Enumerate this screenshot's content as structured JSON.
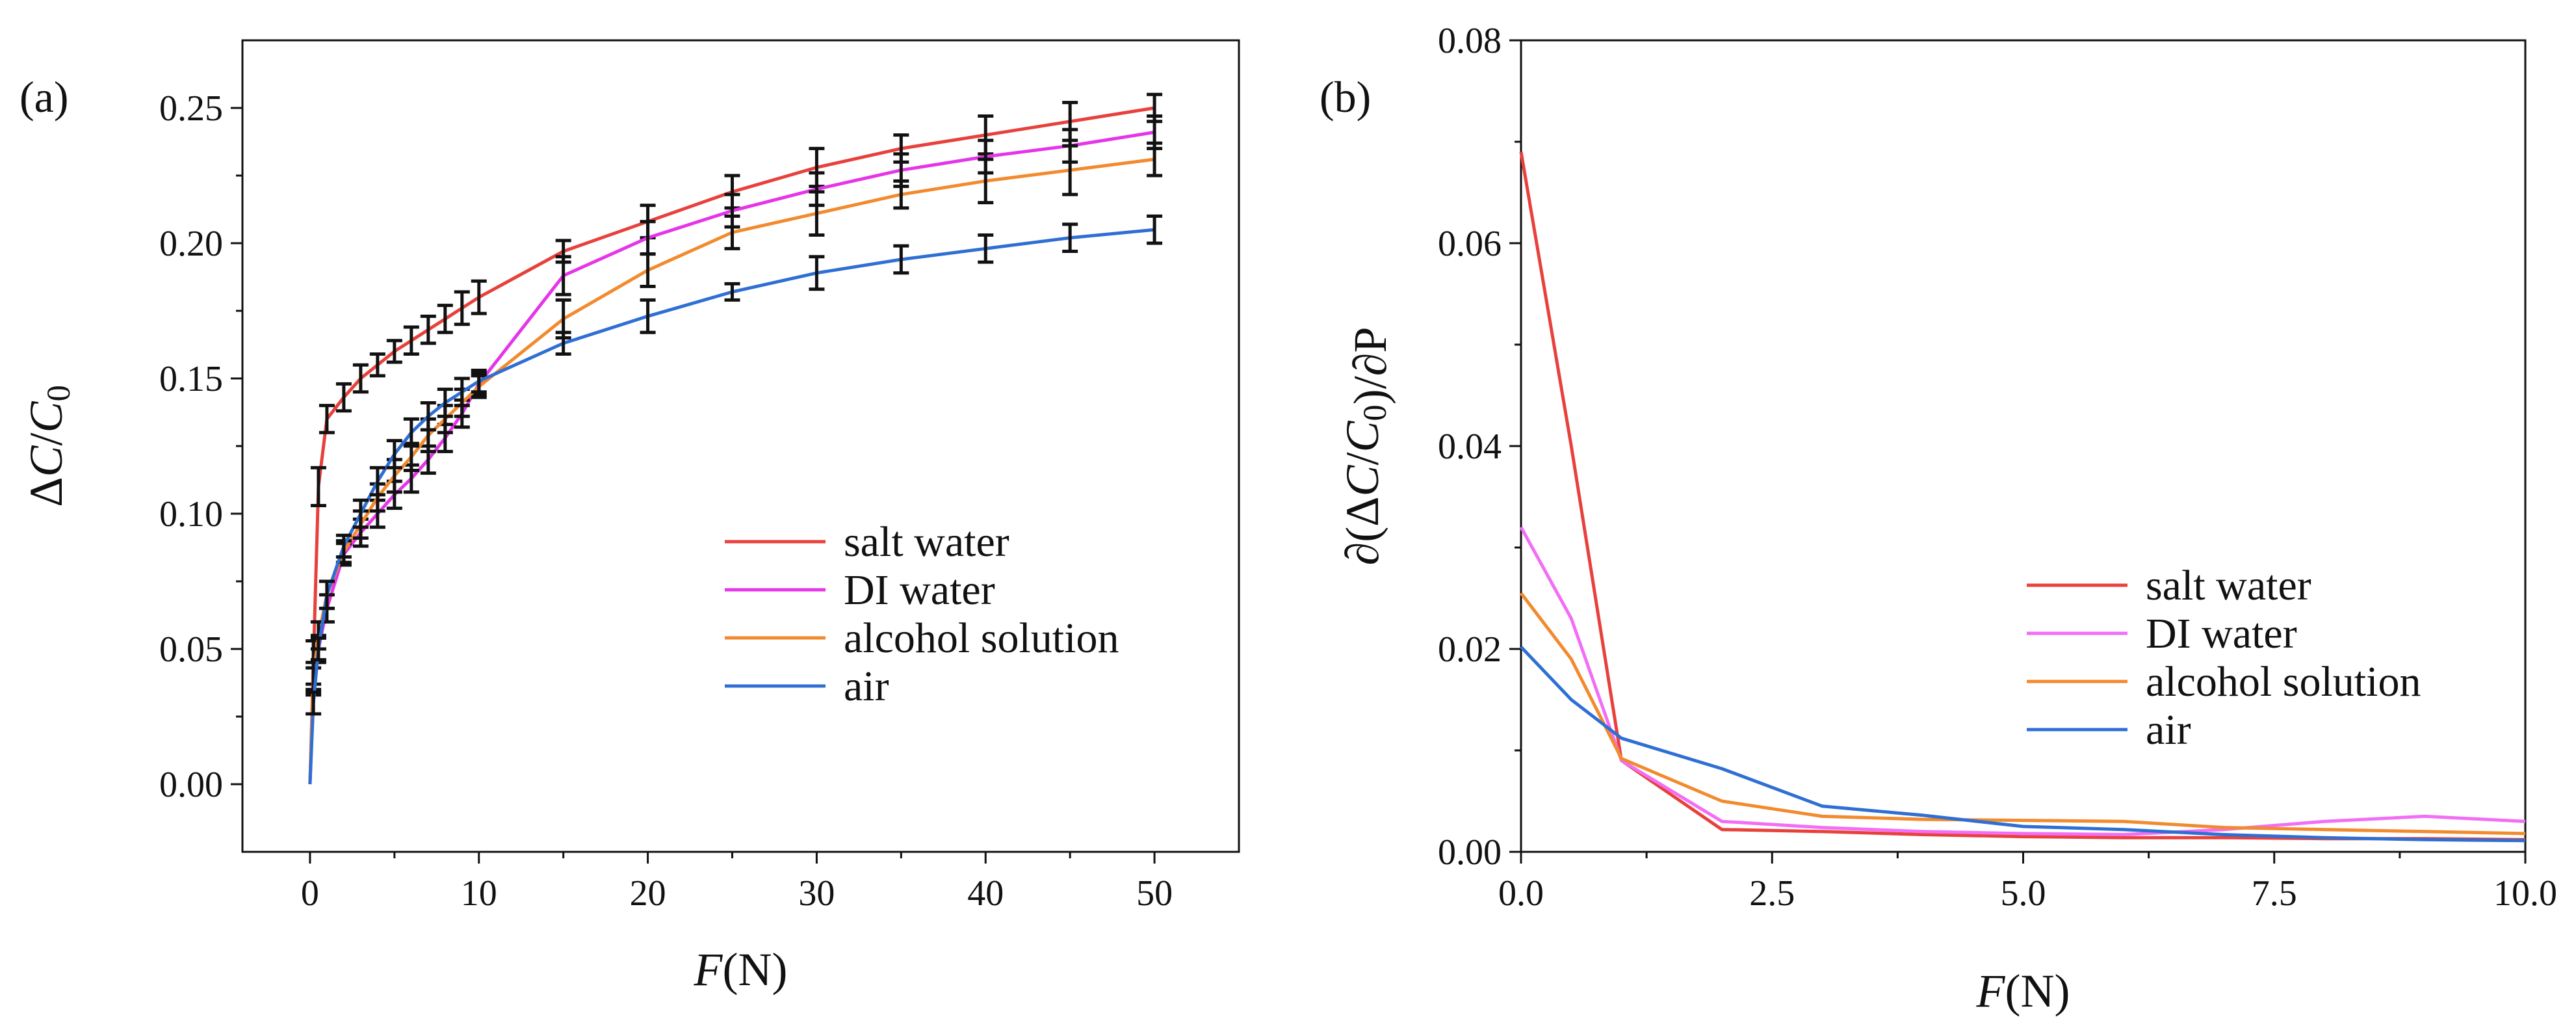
{
  "chart_data": [
    {
      "type": "line",
      "panel": "(a)",
      "xlabel": "F(N)",
      "ylabel": "ΔC/C0",
      "xlim": [
        -4,
        55
      ],
      "ylim": [
        -0.025,
        0.275
      ],
      "xticks": [
        0,
        10,
        20,
        30,
        40,
        50
      ],
      "xtick_labels": [
        "0",
        "10",
        "20",
        "30",
        "40",
        "50"
      ],
      "yticks": [
        0.0,
        0.05,
        0.1,
        0.15,
        0.2,
        0.25
      ],
      "ytick_labels": [
        "0.00",
        "0.05",
        "0.10",
        "0.15",
        "0.20",
        "0.25"
      ],
      "legend_position": "center-right",
      "error_bars": true,
      "series": [
        {
          "name": "salt water",
          "color": "#e8413c",
          "x": [
            0,
            0.2,
            0.5,
            1,
            2,
            3,
            4,
            5,
            6,
            7,
            8,
            9,
            10,
            15,
            20,
            25,
            30,
            35,
            40,
            45,
            50
          ],
          "y": [
            0.0,
            0.045,
            0.11,
            0.135,
            0.143,
            0.15,
            0.155,
            0.16,
            0.164,
            0.168,
            0.172,
            0.176,
            0.18,
            0.197,
            0.208,
            0.219,
            0.228,
            0.235,
            0.24,
            0.245,
            0.25
          ],
          "err": [
            0,
            0.008,
            0.007,
            0.005,
            0.005,
            0.005,
            0.004,
            0.004,
            0.005,
            0.005,
            0.005,
            0.006,
            0.006,
            0.004,
            0.006,
            0.006,
            0.007,
            0.005,
            0.007,
            0.007,
            0.005
          ]
        },
        {
          "name": "DI water",
          "color": "#e535e8",
          "x": [
            0,
            0.2,
            0.5,
            1,
            2,
            3,
            4,
            5,
            6,
            7,
            8,
            9,
            10,
            15,
            20,
            25,
            30,
            35,
            40,
            45,
            50
          ],
          "y": [
            0.0,
            0.038,
            0.05,
            0.065,
            0.085,
            0.093,
            0.1,
            0.107,
            0.113,
            0.12,
            0.128,
            0.137,
            0.148,
            0.188,
            0.202,
            0.212,
            0.22,
            0.227,
            0.232,
            0.236,
            0.241
          ],
          "err": [
            0,
            0.005,
            0.005,
            0.005,
            0.004,
            0.005,
            0.005,
            0.005,
            0.005,
            0.005,
            0.005,
            0.005,
            0.004,
            0.007,
            0.006,
            0.006,
            0.006,
            0.006,
            0.006,
            0.006,
            0.006
          ]
        },
        {
          "name": "alcohol solution",
          "color": "#f28a2e",
          "x": [
            0,
            0.2,
            0.5,
            1,
            2,
            3,
            4,
            5,
            6,
            7,
            8,
            9,
            10,
            15,
            20,
            25,
            30,
            35,
            40,
            45,
            50
          ],
          "y": [
            0.0,
            0.04,
            0.055,
            0.07,
            0.086,
            0.096,
            0.106,
            0.114,
            0.121,
            0.129,
            0.135,
            0.141,
            0.147,
            0.172,
            0.19,
            0.204,
            0.211,
            0.218,
            0.223,
            0.227,
            0.231
          ],
          "err": [
            0,
            0.005,
            0.005,
            0.005,
            0.004,
            0.005,
            0.005,
            0.006,
            0.005,
            0.006,
            0.005,
            0.005,
            0.004,
            0.007,
            0.006,
            0.006,
            0.008,
            0.005,
            0.008,
            0.009,
            0.006
          ]
        },
        {
          "name": "air",
          "color": "#2f6fd4",
          "x": [
            0,
            0.2,
            0.5,
            1,
            2,
            3,
            4,
            5,
            6,
            7,
            8,
            9,
            10,
            15,
            20,
            25,
            30,
            35,
            40,
            45,
            50
          ],
          "y": [
            0.0,
            0.03,
            0.05,
            0.07,
            0.088,
            0.1,
            0.112,
            0.122,
            0.13,
            0.136,
            0.141,
            0.145,
            0.149,
            0.163,
            0.173,
            0.182,
            0.189,
            0.194,
            0.198,
            0.202,
            0.205
          ],
          "err": [
            0,
            0.004,
            0.004,
            0.005,
            0.004,
            0.005,
            0.005,
            0.005,
            0.005,
            0.005,
            0.005,
            0.005,
            0.004,
            0.004,
            0.006,
            0.003,
            0.006,
            0.005,
            0.005,
            0.005,
            0.005
          ]
        }
      ]
    },
    {
      "type": "line",
      "panel": "(b)",
      "xlabel": "F(N)",
      "ylabel": "∂(ΔC/C0)/∂P",
      "xlim": [
        0,
        10
      ],
      "ylim": [
        0,
        0.08
      ],
      "xticks": [
        0,
        2.5,
        5,
        7.5,
        10
      ],
      "xtick_labels": [
        "0.0",
        "2.5",
        "5.0",
        "7.5",
        "10.0"
      ],
      "yticks": [
        0,
        0.02,
        0.04,
        0.06,
        0.08
      ],
      "ytick_labels": [
        "0.00",
        "0.02",
        "0.04",
        "0.06",
        "0.08"
      ],
      "legend_position": "center-right",
      "series": [
        {
          "name": "salt water",
          "color": "#e8413c",
          "x": [
            0,
            0.5,
            1,
            2,
            3,
            4,
            5,
            6,
            7,
            8,
            9,
            10
          ],
          "y": [
            0.069,
            0.04,
            0.009,
            0.0022,
            0.002,
            0.0017,
            0.0015,
            0.0014,
            0.0014,
            0.0013,
            0.0013,
            0.0012
          ]
        },
        {
          "name": "DI water",
          "color": "#f26ef5",
          "x": [
            0,
            0.5,
            1,
            2,
            3,
            4,
            5,
            6,
            7,
            8,
            9,
            10
          ],
          "y": [
            0.032,
            0.023,
            0.009,
            0.003,
            0.0024,
            0.002,
            0.0018,
            0.0017,
            0.0022,
            0.003,
            0.0035,
            0.003
          ]
        },
        {
          "name": "alcohol solution",
          "color": "#f28a2e",
          "x": [
            0,
            0.5,
            1,
            2,
            3,
            4,
            5,
            6,
            7,
            8,
            9,
            10
          ],
          "y": [
            0.0255,
            0.019,
            0.0092,
            0.005,
            0.0035,
            0.0032,
            0.0031,
            0.003,
            0.0024,
            0.0022,
            0.002,
            0.0018
          ]
        },
        {
          "name": "air",
          "color": "#2f6fd4",
          "x": [
            0,
            0.5,
            1,
            2,
            3,
            4,
            5,
            6,
            7,
            8,
            9,
            10
          ],
          "y": [
            0.0202,
            0.015,
            0.0112,
            0.0082,
            0.0045,
            0.0036,
            0.0025,
            0.0022,
            0.0017,
            0.0014,
            0.0012,
            0.0011
          ]
        }
      ]
    }
  ]
}
